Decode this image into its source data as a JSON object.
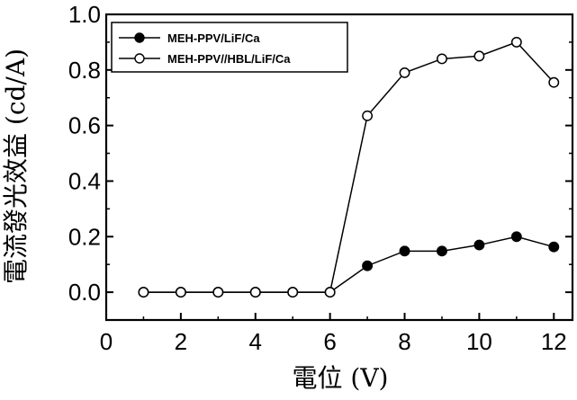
{
  "chart_data": {
    "type": "line",
    "xlabel": "電位 (V)",
    "ylabel": "電流發光效益 (cd/A)",
    "xlim": [
      0,
      12.5
    ],
    "ylim": [
      -0.1,
      1.0
    ],
    "xticks": [
      "0",
      "2",
      "4",
      "6",
      "8",
      "10",
      "12"
    ],
    "yticks": [
      "0.0",
      "0.2",
      "0.4",
      "0.6",
      "0.8",
      "1.0"
    ],
    "legend_position": "top-left",
    "series": [
      {
        "name": "MEH-PPV/LiF/Ca",
        "marker": "filled-circle",
        "color": "#000000",
        "x": [
          1,
          2,
          3,
          4,
          5,
          6,
          7,
          8,
          9,
          10,
          11,
          12
        ],
        "y": [
          0.0,
          0.0,
          0.0,
          0.0,
          0.0,
          0.0,
          0.095,
          0.148,
          0.148,
          0.17,
          0.2,
          0.163
        ]
      },
      {
        "name": "MEH-PPV//HBL/LiF/Ca",
        "marker": "open-circle",
        "color": "#000000",
        "x": [
          1,
          2,
          3,
          4,
          5,
          6,
          7,
          8,
          9,
          10,
          11,
          12
        ],
        "y": [
          0.0,
          0.0,
          0.0,
          0.0,
          0.0,
          0.0,
          0.635,
          0.79,
          0.84,
          0.85,
          0.9,
          0.755
        ]
      }
    ]
  }
}
